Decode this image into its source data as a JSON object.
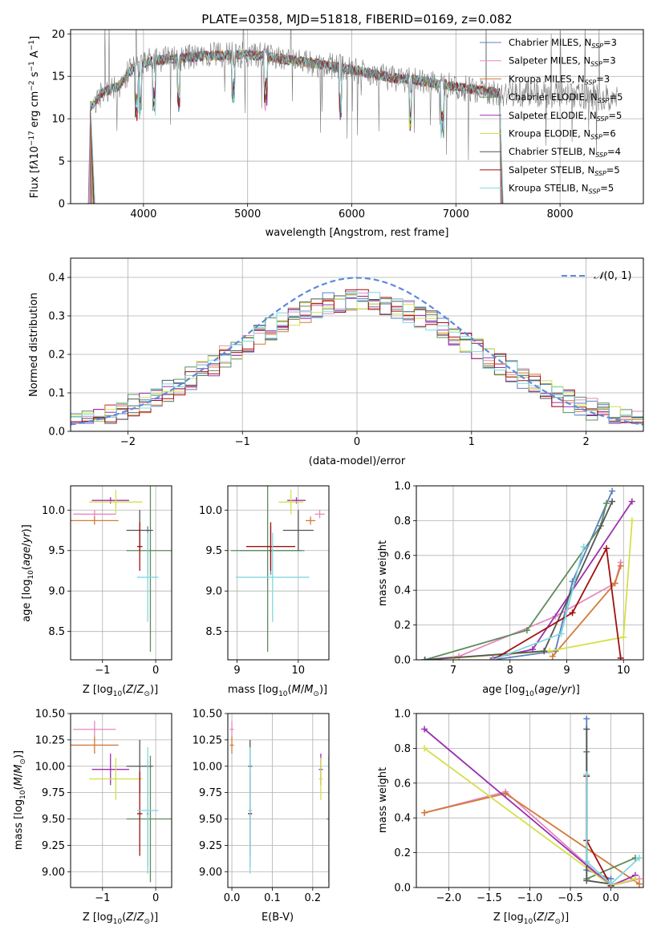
{
  "chart_data": [
    {
      "id": "spectrum",
      "type": "line",
      "title": "PLATE=0358, MJD=51818, FIBERID=0169, z=0.082",
      "xlabel": "wavelength [Angstrom, rest frame]",
      "ylabel": "Flux [f_λ 10^-17 erg cm^-2 s^-1 A^-1]",
      "xlim": [
        3300,
        8800
      ],
      "ylim": [
        0,
        20.5
      ],
      "xticks": [
        4000,
        5000,
        6000,
        7000,
        8000
      ],
      "yticks": [
        0,
        5,
        10,
        15,
        20
      ],
      "legend_position": "right",
      "legend": [
        {
          "base": "Chabrier MILES, N",
          "sub": "SSP",
          "tail": "=3",
          "color": "#5b7fc0"
        },
        {
          "base": "Salpeter MILES, N",
          "sub": "SSP",
          "tail": "=3",
          "color": "#e58ac0"
        },
        {
          "base": "Kroupa MILES, N",
          "sub": "SSP",
          "tail": "=3",
          "color": "#d27a3a"
        },
        {
          "base": "Chabrier ELODIE, N",
          "sub": "SSP",
          "tail": "=5",
          "color": "#5d8c5d"
        },
        {
          "base": "Salpeter ELODIE, N",
          "sub": "SSP",
          "tail": "=5",
          "color": "#9b30b0"
        },
        {
          "base": "Kroupa ELODIE, N",
          "sub": "SSP",
          "tail": "=6",
          "color": "#d4e04a"
        },
        {
          "base": "Chabrier STELIB, N",
          "sub": "SSP",
          "tail": "=4",
          "color": "#555555"
        },
        {
          "base": "Salpeter STELIB, N",
          "sub": "SSP",
          "tail": "=5",
          "color": "#a01010"
        },
        {
          "base": "Kroupa STELIB, N",
          "sub": "SSP",
          "tail": "=5",
          "color": "#7fd8e0"
        }
      ],
      "continuum": {
        "x": [
          3500,
          3600,
          3750,
          3900,
          4050,
          4200,
          4400,
          4600,
          4800,
          5000,
          5200,
          5400,
          5600,
          5800,
          6000,
          6200,
          6400,
          6600,
          6800,
          7000,
          7200,
          7400
        ],
        "y": [
          11.5,
          13,
          13.8,
          16,
          16.8,
          17,
          17.2,
          17.4,
          17.5,
          17.6,
          17.3,
          16.9,
          16.6,
          16.2,
          15.8,
          15.3,
          14.8,
          14.6,
          14.2,
          13.8,
          13.4,
          13.1
        ]
      },
      "data_extent": [
        3450,
        8550
      ]
    },
    {
      "id": "residual-histogram",
      "type": "bar",
      "xlabel": "(data-model)/error",
      "ylabel": "Normed distribution",
      "xlim": [
        -2.5,
        2.5
      ],
      "ylim": [
        0,
        0.45
      ],
      "xticks": [
        -2,
        -1,
        0,
        1,
        2
      ],
      "yticks": [
        0.0,
        0.1,
        0.2,
        0.3,
        0.4
      ],
      "legend_position": "top-right",
      "gaussian": {
        "name": "N(0, 1)",
        "mean": 0,
        "sigma": 1,
        "color": "#5b8bdc"
      },
      "bin_width": 0.1
    },
    {
      "id": "age-vs-Z",
      "type": "scatter",
      "xlabel": "Z [log10(Z/Z☉)]",
      "ylabel": "age [log10(age/yr)]",
      "xlim": [
        -1.6,
        0.3
      ],
      "ylim": [
        8.15,
        10.3
      ],
      "xticks": [
        -1,
        0
      ],
      "yticks": [
        8.5,
        9.0,
        9.5,
        10.0
      ]
    },
    {
      "id": "age-vs-mass",
      "type": "scatter",
      "xlabel": "mass [log10(M/M☉)]",
      "ylabel": "",
      "xlim": [
        8.85,
        10.5
      ],
      "ylim": [
        8.15,
        10.3
      ],
      "xticks": [
        9,
        10
      ],
      "yticks": [
        8.5,
        9.0,
        9.5,
        10.0
      ]
    },
    {
      "id": "massweight-vs-age",
      "type": "line",
      "xlabel": "age [log10(age/yr)]",
      "ylabel": "mass weight",
      "xlim": [
        6.35,
        10.35
      ],
      "ylim": [
        0,
        1.0
      ],
      "xticks": [
        7,
        8,
        9,
        10
      ],
      "yticks": [
        0.0,
        0.2,
        0.4,
        0.6,
        0.8,
        1.0
      ]
    },
    {
      "id": "mass-vs-Z",
      "type": "scatter",
      "xlabel": "Z [log10(Z/Z☉)]",
      "ylabel": "mass [log10(M/M☉)]",
      "xlim": [
        -1.6,
        0.3
      ],
      "ylim": [
        8.85,
        10.5
      ],
      "xticks": [
        -1,
        0
      ],
      "yticks": [
        9.0,
        9.25,
        9.5,
        9.75,
        10.0,
        10.25,
        10.5
      ]
    },
    {
      "id": "mass-vs-EBV",
      "type": "scatter",
      "xlabel": "E(B-V)",
      "ylabel": "",
      "xlim": [
        -0.01,
        0.24
      ],
      "ylim": [
        8.85,
        10.5
      ],
      "xticks": [
        0.0,
        0.1,
        0.2
      ],
      "yticks": [
        9.0,
        9.25,
        9.5,
        9.75,
        10.0,
        10.25,
        10.5
      ]
    },
    {
      "id": "massweight-vs-Z",
      "type": "line",
      "xlabel": "Z [log10(Z/Z☉)]",
      "ylabel": "mass weight",
      "xlim": [
        -2.4,
        0.4
      ],
      "ylim": [
        0,
        1.0
      ],
      "xticks": [
        -2.0,
        -1.5,
        -1.0,
        -0.5,
        0.0
      ],
      "yticks": [
        0.0,
        0.2,
        0.4,
        0.6,
        0.8,
        1.0
      ]
    }
  ],
  "models": [
    {
      "color": "#5b7fc0",
      "Z": -0.15,
      "Zerr": 0.02,
      "age": 9.5,
      "ageErr": 0.3,
      "mass": 9.55,
      "massErr": 0.5,
      "ebv": 0.045,
      "mw_age": [
        [
          7.7,
          0.0
        ],
        [
          8.8,
          0.05
        ],
        [
          9.1,
          0.45
        ],
        [
          9.8,
          0.97
        ]
      ],
      "mw_Z": [
        [
          -0.3,
          0.97
        ],
        [
          -0.3,
          0.1
        ],
        [
          0.0,
          0.05
        ]
      ]
    },
    {
      "color": "#e58ac0",
      "Z": -1.15,
      "Zerr": 0.4,
      "age": 9.95,
      "ageErr": 0.05,
      "mass": 10.35,
      "massErr": 0.08,
      "ebv": 0.0,
      "mw_age": [
        [
          6.5,
          0.0
        ],
        [
          7.1,
          0.02
        ],
        [
          8.8,
          0.25
        ],
        [
          9.85,
          0.44
        ],
        [
          9.95,
          0.56
        ]
      ],
      "mw_Z": [
        [
          -2.3,
          0.43
        ],
        [
          -1.3,
          0.55
        ],
        [
          0.0,
          0.01
        ],
        [
          0.35,
          0.05
        ]
      ]
    },
    {
      "color": "#d27a3a",
      "Z": -1.15,
      "Zerr": 0.45,
      "age": 9.87,
      "ageErr": 0.05,
      "mass": 10.2,
      "massErr": 0.08,
      "ebv": 0.0,
      "mw_age": [
        [
          8.75,
          0.02
        ],
        [
          9.85,
          0.44
        ],
        [
          9.95,
          0.54
        ]
      ],
      "mw_Z": [
        [
          -2.3,
          0.43
        ],
        [
          -1.3,
          0.54
        ],
        [
          0.35,
          0.02
        ]
      ]
    },
    {
      "color": "#5d8c5d",
      "Z": -0.1,
      "Zerr": 0.45,
      "age": 9.5,
      "ageErr": 1.25,
      "mass": 9.5,
      "massErr": 0.6,
      "ebv": 0.24,
      "mw_age": [
        [
          6.5,
          0.0
        ],
        [
          8.3,
          0.17
        ],
        [
          9.6,
          0.77
        ],
        [
          9.7,
          0.9
        ]
      ],
      "mw_Z": [
        [
          -0.3,
          0.78
        ],
        [
          -0.3,
          0.05
        ],
        [
          0.3,
          0.17
        ]
      ]
    },
    {
      "color": "#9b30b0",
      "Z": -0.85,
      "Zerr": 0.35,
      "age": 10.12,
      "ageErr": 0.04,
      "mass": 9.97,
      "massErr": 0.15,
      "ebv": 0.22,
      "mw_age": [
        [
          7.7,
          0.01
        ],
        [
          8.4,
          0.06
        ],
        [
          10.15,
          0.91
        ]
      ],
      "mw_Z": [
        [
          -2.3,
          0.91
        ],
        [
          0.0,
          0.01
        ],
        [
          0.3,
          0.07
        ]
      ]
    },
    {
      "color": "#d4e04a",
      "Z": -0.75,
      "Zerr": 0.5,
      "age": 10.1,
      "ageErr": 0.15,
      "mass": 9.88,
      "massErr": 0.2,
      "ebv": 0.22,
      "mw_age": [
        [
          7.0,
          0.01
        ],
        [
          8.7,
          0.05
        ],
        [
          10.0,
          0.13
        ],
        [
          10.15,
          0.8
        ]
      ],
      "mw_Z": [
        [
          -2.3,
          0.8
        ],
        [
          0.0,
          0.01
        ],
        [
          0.3,
          0.05
        ]
      ]
    },
    {
      "color": "#555555",
      "Z": -0.3,
      "Zerr": 0.25,
      "age": 9.75,
      "ageErr": 0.25,
      "mass": 10.0,
      "massErr": 0.25,
      "ebv": 0.045,
      "mw_age": [
        [
          6.5,
          0.0
        ],
        [
          8.6,
          0.05
        ],
        [
          9.8,
          0.91
        ]
      ],
      "mw_Z": [
        [
          -0.3,
          0.91
        ],
        [
          -0.3,
          0.04
        ],
        [
          0.0,
          0.02
        ]
      ]
    },
    {
      "color": "#a01010",
      "Z": -0.3,
      "Zerr": 0.05,
      "age": 9.55,
      "ageErr": 0.3,
      "mass": 9.55,
      "massErr": 0.4,
      "ebv": 0.045,
      "mw_age": [
        [
          7.7,
          0.0
        ],
        [
          9.1,
          0.27
        ],
        [
          9.7,
          0.64
        ],
        [
          9.95,
          0.01
        ]
      ],
      "mw_Z": [
        [
          -0.3,
          0.64
        ],
        [
          -0.3,
          0.27
        ],
        [
          0.0,
          0.01
        ]
      ]
    },
    {
      "color": "#7fd8e0",
      "Z": -0.15,
      "Zerr": 0.2,
      "age": 9.17,
      "ageErr": 0.55,
      "mass": 9.58,
      "massErr": 0.6,
      "ebv": 0.045,
      "mw_age": [
        [
          7.7,
          0.0
        ],
        [
          8.9,
          0.15
        ],
        [
          9.3,
          0.65
        ]
      ],
      "mw_Z": [
        [
          -0.3,
          0.65
        ],
        [
          -0.3,
          0.15
        ],
        [
          0.0,
          0.02
        ],
        [
          0.35,
          0.17
        ]
      ]
    }
  ]
}
